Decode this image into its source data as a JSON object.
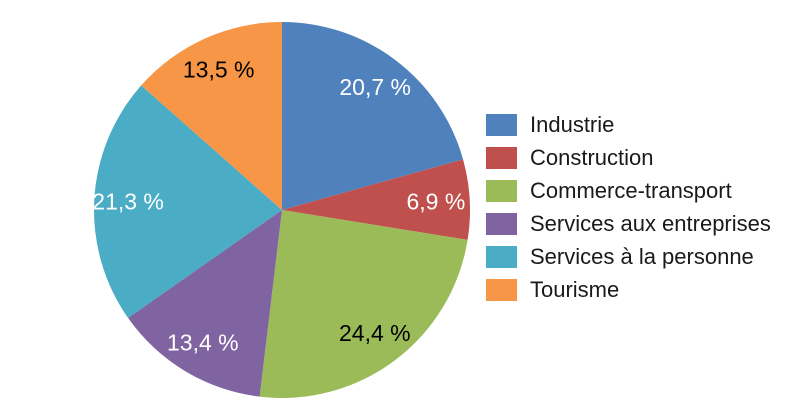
{
  "chart_data": {
    "type": "pie",
    "title": "",
    "legend_position": "right",
    "direction": "clockwise",
    "start_angle_deg": 0,
    "value_unit": "%",
    "background_color": "#FFFFFF",
    "legend_text_color": "#1A1A1A",
    "slices": [
      {
        "label": "Industrie",
        "value": 20.7,
        "display": "20,7 %",
        "color": "#4F81BD",
        "label_color": "#FFFFFF"
      },
      {
        "label": "Construction",
        "value": 6.9,
        "display": "6,9 %",
        "color": "#C0504D",
        "label_color": "#FFFFFF"
      },
      {
        "label": "Commerce-transport",
        "value": 24.4,
        "display": "24,4 %",
        "color": "#9BBB59",
        "label_color": "#000000"
      },
      {
        "label": "Services aux entreprises",
        "value": 13.4,
        "display": "13,4 %",
        "color": "#8064A2",
        "label_color": "#FFFFFF"
      },
      {
        "label": "Services à la personne",
        "value": 21.3,
        "display": "21,3 %",
        "color": "#4BACC6",
        "label_color": "#FFFFFF"
      },
      {
        "label": "Tourisme",
        "value": 13.5,
        "display": "13,5 %",
        "color": "#F79646",
        "label_color": "#000000"
      }
    ]
  }
}
